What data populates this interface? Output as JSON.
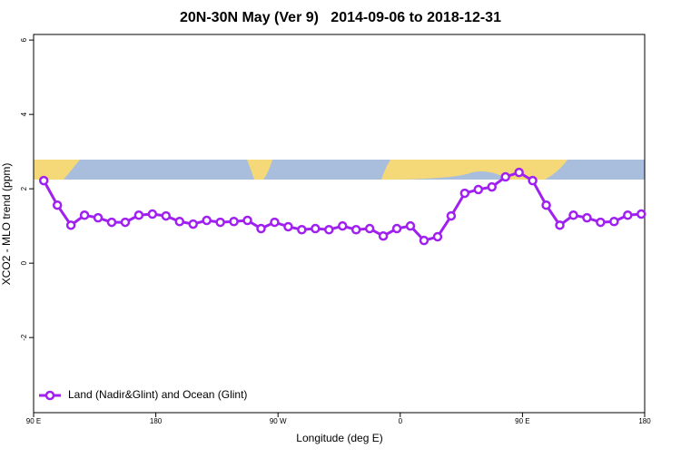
{
  "chart_data": {
    "type": "line",
    "title": "20N-30N May (Ver 9)   2014-09-06 to 2018-12-31",
    "xlabel": "Longitude (deg E)",
    "ylabel": "XCO2 - MLO trend (ppm)",
    "x": [
      97.5,
      107.5,
      117.5,
      127.5,
      137.5,
      147.5,
      157.5,
      167.5,
      177.5,
      187.5,
      197.5,
      207.5,
      217.5,
      227.5,
      237.5,
      247.5,
      257.5,
      267.5,
      277.5,
      287.5,
      297.5,
      307.5,
      317.5,
      327.5,
      337.5,
      347.5,
      357.5,
      367.5,
      377.5,
      387.5,
      397.5,
      407.5,
      417.5,
      427.5,
      437.5,
      447.5,
      457.5,
      467.5,
      477.5,
      487.5,
      497.5,
      507.5,
      517.5,
      527.5,
      537.5
    ],
    "series": [
      {
        "name": "Land (Nadir&Glint) and Ocean (Glint)",
        "color": "#a020f0",
        "values": [
          2.22,
          1.56,
          1.02,
          1.29,
          1.22,
          1.1,
          1.1,
          1.29,
          1.32,
          1.27,
          1.12,
          1.05,
          1.15,
          1.1,
          1.12,
          1.15,
          0.93,
          1.1,
          0.98,
          0.9,
          0.93,
          0.9,
          1.0,
          0.9,
          0.93,
          0.73,
          0.93,
          1.0,
          0.61,
          0.71,
          1.27,
          1.88,
          1.98,
          2.05,
          2.32,
          2.44,
          2.22,
          1.56,
          1.02,
          1.29,
          1.22,
          1.1,
          1.12,
          1.29,
          1.32
        ]
      }
    ],
    "xlim": [
      90,
      540
    ],
    "xticks": [
      {
        "value": 90,
        "label": "90 E"
      },
      180,
      {
        "value": 270,
        "label": "90 W"
      },
      {
        "value": 360,
        "label": "0"
      },
      {
        "value": 450,
        "label": "90 E"
      },
      {
        "value": 540,
        "label": "180"
      }
    ],
    "ylim": [
      -4.02,
      6.15
    ],
    "yticks": [
      -2,
      0,
      2,
      4,
      6
    ],
    "grid": false,
    "legend": "bottom-left"
  }
}
